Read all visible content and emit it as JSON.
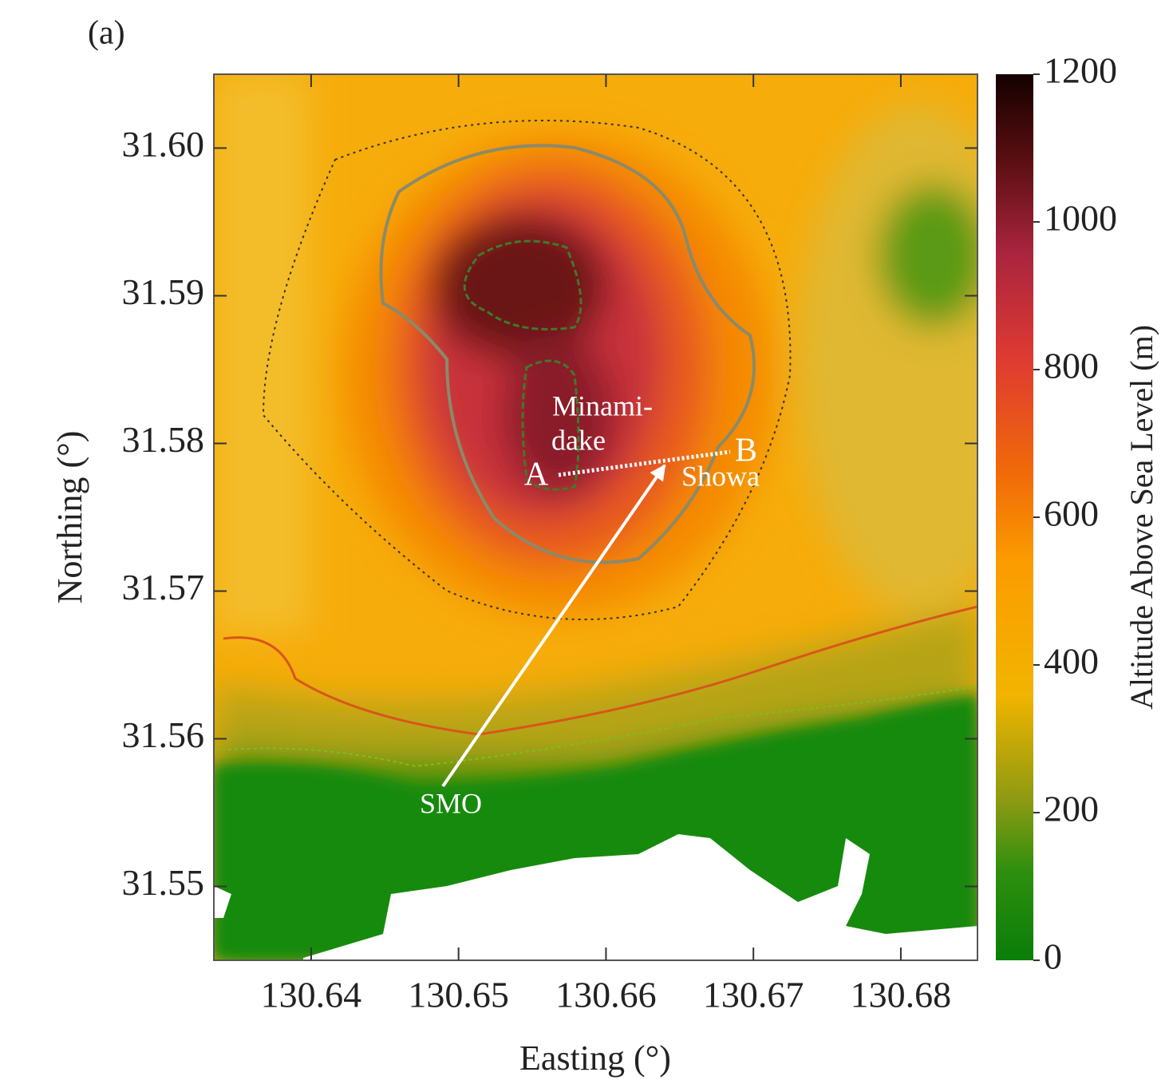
{
  "chart_data": {
    "type": "map",
    "panel_label": "(a)",
    "xlabel": "Easting (°)",
    "ylabel": "Northing (°)",
    "xlim": [
      130.6334,
      130.6852
    ],
    "ylim": [
      31.545,
      31.605
    ],
    "xticks": [
      130.64,
      130.65,
      130.66,
      130.67,
      130.68
    ],
    "yticks": [
      {
        "value": 31.6,
        "label": "31.60"
      },
      31.59,
      31.58,
      31.57,
      31.56,
      31.55
    ],
    "colorbar": {
      "label": "Altitude Above Sea Level (m)",
      "lim": [
        0,
        1200
      ],
      "ticks": [
        0,
        200,
        400,
        600,
        800,
        1000,
        1200
      ]
    },
    "annotations": [
      "Minami-",
      "dake",
      "A",
      "B",
      "Showa",
      "SMO"
    ]
  }
}
